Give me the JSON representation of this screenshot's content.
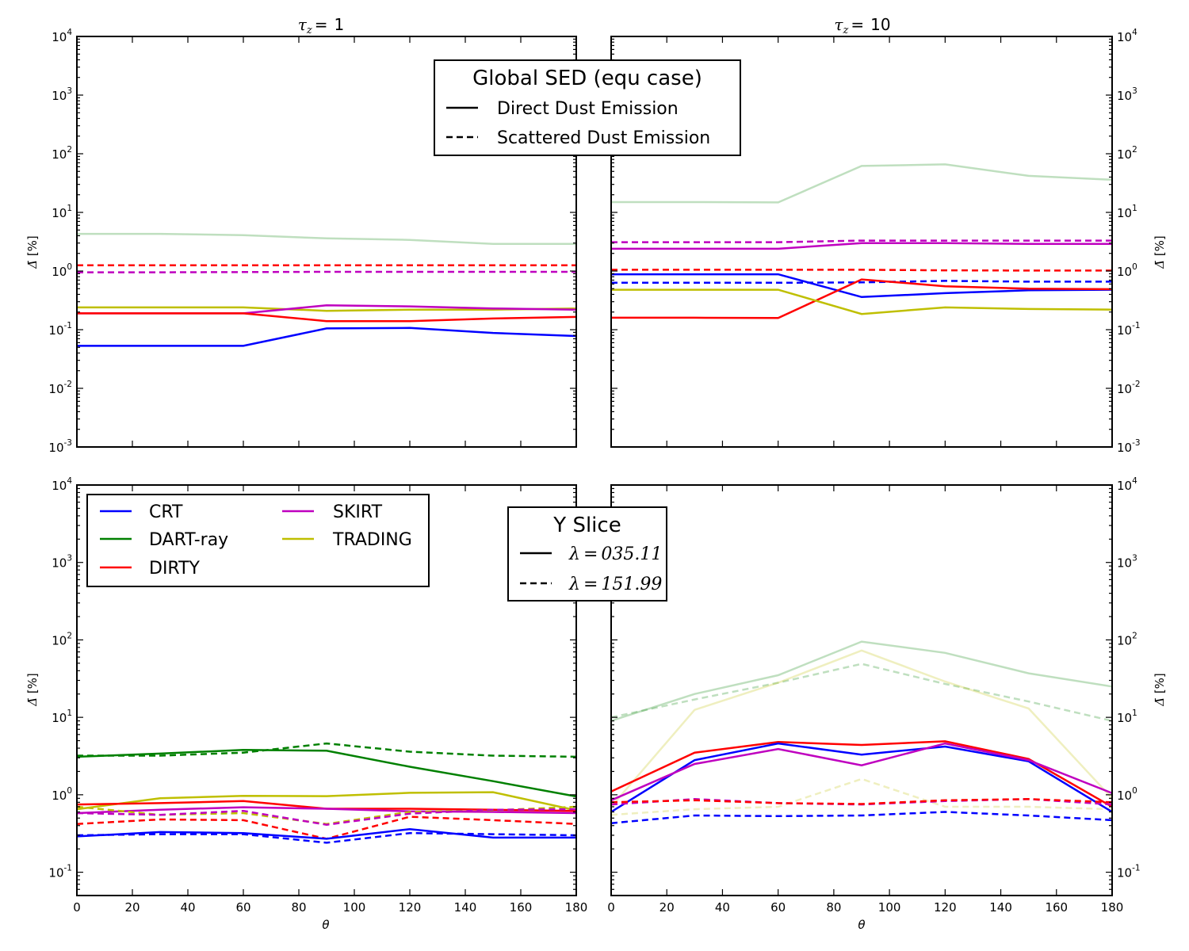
{
  "figure": {
    "col_titles": [
      "τz = 1",
      "τz = 10"
    ],
    "col_title_parts": [
      {
        "sym": "τ",
        "sub": "z",
        "eq": "=",
        "val": "1"
      },
      {
        "sym": "τ",
        "sub": "z",
        "eq": "=",
        "val": "10"
      }
    ],
    "ylabel": "Δ̄ [%]",
    "ylabel_parts": {
      "sym": "Δ̄",
      "rest": " [%]"
    },
    "xlabel": "θ"
  },
  "chart_data": [
    {
      "type": "line",
      "panel": "top-left",
      "title": "τz = 1",
      "x": [
        0,
        30,
        60,
        90,
        120,
        150,
        180
      ],
      "xlim": [
        0,
        180
      ],
      "xticks": [],
      "ylog": true,
      "ylim": [
        0.001,
        10000
      ],
      "yticks": [
        {
          "mant": "10",
          "exp": "4"
        },
        {
          "mant": "10",
          "exp": "3"
        },
        {
          "mant": "10",
          "exp": "2"
        },
        {
          "mant": "10",
          "exp": "1"
        },
        {
          "mant": "10",
          "exp": "0"
        },
        {
          "mant": "10",
          "exp": "-1"
        },
        {
          "mant": "10",
          "exp": "-2"
        },
        {
          "mant": "10",
          "exp": "-3"
        }
      ],
      "ytick_values": [
        10000,
        1000,
        100,
        10,
        1,
        0.1,
        0.01,
        0.001
      ],
      "yticks_side": "left",
      "grid": false,
      "legend": "top-center (Global SED)",
      "series": [
        {
          "code": "DART-ray",
          "color": "#008000",
          "style": "solid",
          "faded": true,
          "values": [
            4.3,
            4.3,
            4.1,
            3.6,
            3.4,
            2.9,
            2.9
          ]
        },
        {
          "code": "DIRTY",
          "color": "#ff0000",
          "style": "dashed",
          "faded": false,
          "values": [
            1.25,
            1.25,
            1.25,
            1.25,
            1.25,
            1.25,
            1.25
          ]
        },
        {
          "code": "SKIRT",
          "color": "#bf00bf",
          "style": "dashed",
          "faded": false,
          "values": [
            0.95,
            0.95,
            0.96,
            0.97,
            0.97,
            0.97,
            0.97
          ]
        },
        {
          "code": "TRADING",
          "color": "#bfbf00",
          "style": "solid",
          "faded": false,
          "values": [
            0.24,
            0.24,
            0.24,
            0.21,
            0.22,
            0.22,
            0.23
          ]
        },
        {
          "code": "SKIRT",
          "color": "#bf00bf",
          "style": "solid",
          "faded": false,
          "values": [
            0.19,
            0.19,
            0.19,
            0.26,
            0.25,
            0.23,
            0.22
          ]
        },
        {
          "code": "DIRTY",
          "color": "#ff0000",
          "style": "solid",
          "faded": false,
          "values": [
            0.19,
            0.19,
            0.19,
            0.14,
            0.14,
            0.155,
            0.165
          ]
        },
        {
          "code": "CRT",
          "color": "#0000ff",
          "style": "solid",
          "faded": false,
          "values": [
            0.053,
            0.053,
            0.053,
            0.105,
            0.107,
            0.088,
            0.078
          ]
        }
      ]
    },
    {
      "type": "line",
      "panel": "top-right",
      "title": "τz = 10",
      "x": [
        0,
        30,
        60,
        90,
        120,
        150,
        180
      ],
      "xlim": [
        0,
        180
      ],
      "xticks": [],
      "ylog": true,
      "ylim": [
        0.001,
        10000
      ],
      "yticks": [
        {
          "mant": "10",
          "exp": "4"
        },
        {
          "mant": "10",
          "exp": "3"
        },
        {
          "mant": "10",
          "exp": "2"
        },
        {
          "mant": "10",
          "exp": "1"
        },
        {
          "mant": "10",
          "exp": "0"
        },
        {
          "mant": "10",
          "exp": "-1"
        },
        {
          "mant": "10",
          "exp": "-2"
        },
        {
          "mant": "10",
          "exp": "-3"
        }
      ],
      "ytick_values": [
        10000,
        1000,
        100,
        10,
        1,
        0.1,
        0.01,
        0.001
      ],
      "yticks_side": "right",
      "grid": false,
      "legend": "none",
      "series": [
        {
          "code": "DART-ray",
          "color": "#008000",
          "style": "solid",
          "faded": true,
          "values": [
            15,
            15,
            14.8,
            62,
            66,
            42,
            36
          ]
        },
        {
          "code": "SKIRT",
          "color": "#bf00bf",
          "style": "dashed",
          "faded": false,
          "values": [
            3.1,
            3.1,
            3.1,
            3.3,
            3.3,
            3.3,
            3.3
          ]
        },
        {
          "code": "SKIRT",
          "color": "#bf00bf",
          "style": "solid",
          "faded": false,
          "values": [
            2.4,
            2.4,
            2.4,
            3.0,
            3.0,
            2.9,
            2.9
          ]
        },
        {
          "code": "DIRTY",
          "color": "#ff0000",
          "style": "dashed",
          "faded": false,
          "values": [
            1.05,
            1.05,
            1.05,
            1.05,
            1.03,
            1.02,
            1.02
          ]
        },
        {
          "code": "CRT",
          "color": "#0000ff",
          "style": "solid",
          "faded": false,
          "values": [
            0.88,
            0.88,
            0.88,
            0.36,
            0.42,
            0.47,
            0.48
          ]
        },
        {
          "code": "CRT",
          "color": "#0000ff",
          "style": "dashed",
          "faded": false,
          "values": [
            0.63,
            0.63,
            0.63,
            0.64,
            0.68,
            0.66,
            0.66
          ]
        },
        {
          "code": "DIRTY",
          "color": "#ff0000",
          "style": "solid",
          "faded": false,
          "values": [
            0.16,
            0.16,
            0.158,
            0.72,
            0.55,
            0.5,
            0.49
          ]
        },
        {
          "code": "TRADING",
          "color": "#bfbf00",
          "style": "solid",
          "faded": false,
          "values": [
            0.48,
            0.48,
            0.48,
            0.185,
            0.24,
            0.225,
            0.22
          ]
        }
      ]
    },
    {
      "type": "line",
      "panel": "bottom-left",
      "title": "",
      "x": [
        0,
        30,
        60,
        90,
        120,
        150,
        180
      ],
      "xlim": [
        0,
        180
      ],
      "xticks": [
        "0",
        "20",
        "40",
        "60",
        "80",
        "100",
        "120",
        "140",
        "160",
        "180"
      ],
      "ylog": true,
      "ylim": [
        0.05,
        10000
      ],
      "yticks": [
        {
          "mant": "10",
          "exp": "4"
        },
        {
          "mant": "10",
          "exp": "3"
        },
        {
          "mant": "10",
          "exp": "2"
        },
        {
          "mant": "10",
          "exp": "1"
        },
        {
          "mant": "10",
          "exp": "0"
        },
        {
          "mant": "10",
          "exp": "-1"
        }
      ],
      "ytick_values": [
        10000,
        1000,
        100,
        10,
        1,
        0.1
      ],
      "yticks_side": "left",
      "grid": false,
      "legend": "top-left (codes) and top-right (Y Slice)",
      "series": [
        {
          "code": "DART-ray",
          "color": "#008000",
          "style": "dashed",
          "faded": false,
          "values": [
            3.2,
            3.2,
            3.5,
            4.6,
            3.6,
            3.2,
            3.1
          ]
        },
        {
          "code": "DART-ray",
          "color": "#008000",
          "style": "solid",
          "faded": false,
          "values": [
            3.1,
            3.4,
            3.8,
            3.7,
            2.3,
            1.5,
            0.95
          ]
        },
        {
          "code": "TRADING",
          "color": "#bfbf00",
          "style": "solid",
          "faded": false,
          "values": [
            0.65,
            0.9,
            0.97,
            0.96,
            1.06,
            1.08,
            0.63
          ]
        },
        {
          "code": "DIRTY",
          "color": "#ff0000",
          "style": "solid",
          "faded": false,
          "values": [
            0.75,
            0.78,
            0.83,
            0.66,
            0.66,
            0.64,
            0.62
          ]
        },
        {
          "code": "SKIRT",
          "color": "#bf00bf",
          "style": "solid",
          "faded": false,
          "values": [
            0.58,
            0.64,
            0.69,
            0.66,
            0.61,
            0.6,
            0.58
          ]
        },
        {
          "code": "TRADING",
          "color": "#bfbf00",
          "style": "dashed",
          "faded": false,
          "values": [
            0.7,
            0.55,
            0.58,
            0.42,
            0.6,
            0.63,
            0.7
          ]
        },
        {
          "code": "SKIRT",
          "color": "#bf00bf",
          "style": "dashed",
          "faded": false,
          "values": [
            0.58,
            0.55,
            0.62,
            0.41,
            0.57,
            0.64,
            0.65
          ]
        },
        {
          "code": "DIRTY",
          "color": "#ff0000",
          "style": "dashed",
          "faded": false,
          "values": [
            0.42,
            0.48,
            0.47,
            0.27,
            0.52,
            0.47,
            0.42
          ]
        },
        {
          "code": "CRT",
          "color": "#0000ff",
          "style": "solid",
          "faded": false,
          "values": [
            0.29,
            0.33,
            0.32,
            0.27,
            0.36,
            0.28,
            0.28
          ]
        },
        {
          "code": "CRT",
          "color": "#0000ff",
          "style": "dashed",
          "faded": false,
          "values": [
            0.3,
            0.31,
            0.31,
            0.24,
            0.32,
            0.31,
            0.3
          ]
        }
      ]
    },
    {
      "type": "line",
      "panel": "bottom-right",
      "title": "",
      "x": [
        0,
        30,
        60,
        90,
        120,
        150,
        180
      ],
      "xlim": [
        0,
        180
      ],
      "xticks": [
        "0",
        "20",
        "40",
        "60",
        "80",
        "100",
        "120",
        "140",
        "160",
        "180"
      ],
      "ylog": true,
      "ylim": [
        0.05,
        10000
      ],
      "yticks": [
        {
          "mant": "10",
          "exp": "4"
        },
        {
          "mant": "10",
          "exp": "3"
        },
        {
          "mant": "10",
          "exp": "2"
        },
        {
          "mant": "10",
          "exp": "1"
        },
        {
          "mant": "10",
          "exp": "0"
        },
        {
          "mant": "10",
          "exp": "-1"
        }
      ],
      "ytick_values": [
        10000,
        1000,
        100,
        10,
        1,
        0.1
      ],
      "yticks_side": "right",
      "grid": false,
      "legend": "none",
      "series": [
        {
          "code": "DART-ray",
          "color": "#008000",
          "style": "solid",
          "faded": true,
          "values": [
            9,
            20,
            35,
            95,
            68,
            37,
            25
          ]
        },
        {
          "code": "DART-ray",
          "color": "#008000",
          "style": "dashed",
          "faded": true,
          "values": [
            10,
            17,
            28,
            49,
            27,
            16,
            9
          ]
        },
        {
          "code": "TRADING",
          "color": "#bfbf00",
          "style": "solid",
          "faded": true,
          "values": [
            0.7,
            12.5,
            28,
            73,
            29,
            13,
            0.9
          ]
        },
        {
          "code": "TRADING",
          "color": "#bfbf00",
          "style": "dashed",
          "faded": true,
          "values": [
            0.55,
            0.65,
            0.7,
            1.6,
            0.7,
            0.7,
            0.65
          ]
        },
        {
          "code": "DIRTY",
          "color": "#ff0000",
          "style": "solid",
          "faded": false,
          "values": [
            1.1,
            3.5,
            4.8,
            4.4,
            4.9,
            2.9,
            0.7
          ]
        },
        {
          "code": "CRT",
          "color": "#0000ff",
          "style": "solid",
          "faded": false,
          "values": [
            0.6,
            2.8,
            4.6,
            3.3,
            4.2,
            2.7,
            0.6
          ]
        },
        {
          "code": "SKIRT",
          "color": "#bf00bf",
          "style": "solid",
          "faded": false,
          "values": [
            0.85,
            2.5,
            3.9,
            2.4,
            4.6,
            2.8,
            1.05
          ]
        },
        {
          "code": "SKIRT",
          "color": "#bf00bf",
          "style": "dashed",
          "faded": false,
          "values": [
            0.75,
            0.88,
            0.78,
            0.75,
            0.83,
            0.88,
            0.75
          ]
        },
        {
          "code": "DIRTY",
          "color": "#ff0000",
          "style": "dashed",
          "faded": false,
          "values": [
            0.8,
            0.85,
            0.78,
            0.76,
            0.85,
            0.88,
            0.8
          ]
        },
        {
          "code": "CRT",
          "color": "#0000ff",
          "style": "dashed",
          "faded": false,
          "values": [
            0.43,
            0.54,
            0.53,
            0.54,
            0.6,
            0.54,
            0.47
          ]
        }
      ]
    }
  ],
  "legend_sed": {
    "title": "Global SED (equ case)",
    "items": [
      {
        "style": "solid",
        "label": "Direct Dust Emission"
      },
      {
        "style": "dashed",
        "label": "Scattered Dust Emission"
      }
    ]
  },
  "legend_codes": {
    "items": [
      {
        "label": "CRT",
        "color": "#0000ff"
      },
      {
        "label": "DART-ray",
        "color": "#008000"
      },
      {
        "label": "DIRTY",
        "color": "#ff0000"
      },
      {
        "label": "SKIRT",
        "color": "#bf00bf"
      },
      {
        "label": "TRADING",
        "color": "#bfbf00"
      }
    ]
  },
  "legend_slice": {
    "title": "Y Slice",
    "items": [
      {
        "style": "solid",
        "label": "λ = 035.11",
        "sym": "λ",
        "eq": "=",
        "val": "035.11"
      },
      {
        "style": "dashed",
        "label": "λ = 151.99",
        "sym": "λ",
        "eq": "=",
        "val": "151.99"
      }
    ]
  }
}
